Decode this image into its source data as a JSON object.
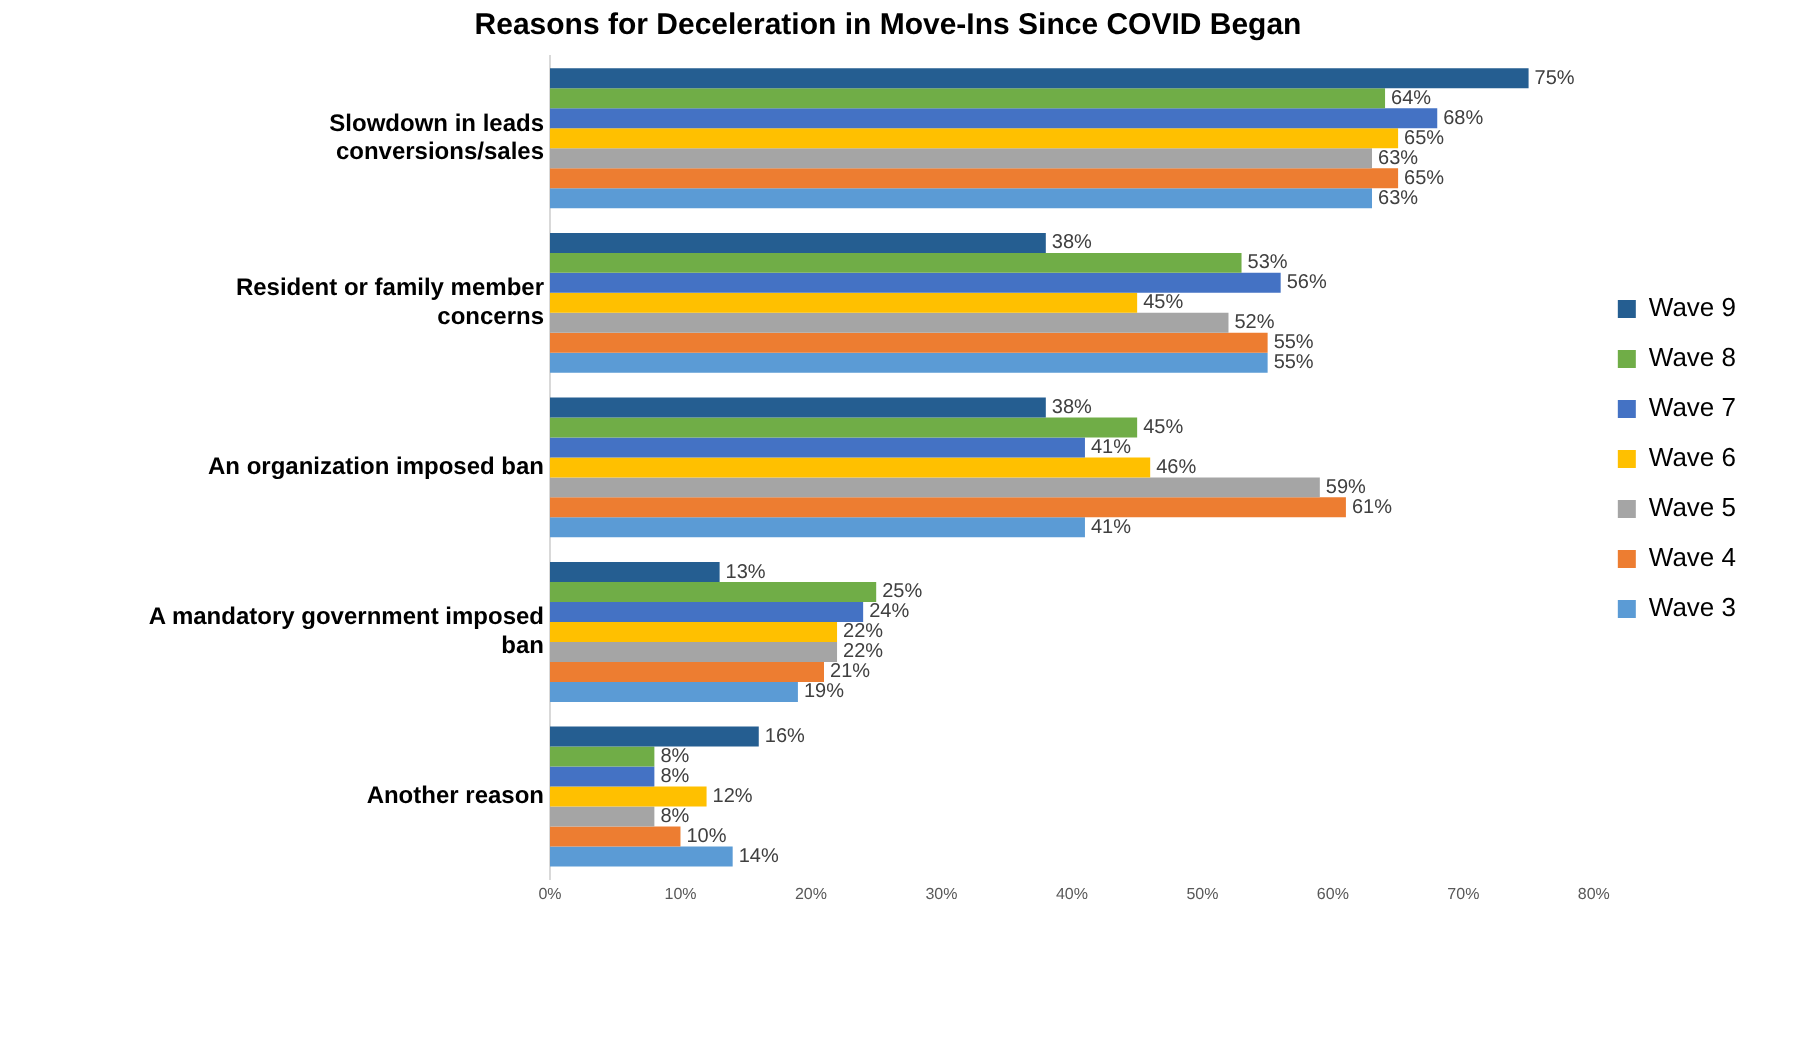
{
  "chart_data": {
    "type": "bar",
    "orientation": "horizontal",
    "title": "Reasons for Deceleration in Move-Ins Since COVID Began",
    "categories": [
      "Slowdown in leads conversions/sales",
      "Resident or family member concerns",
      "An organization imposed ban",
      "A mandatory government imposed ban",
      "Another reason"
    ],
    "series": [
      {
        "name": "Wave 9",
        "color": "#255e91",
        "values": [
          75,
          38,
          38,
          13,
          16
        ],
        "value_labels": [
          "75%",
          "38%",
          "38%",
          "13%",
          "16%"
        ]
      },
      {
        "name": "Wave 8",
        "color": "#70ad47",
        "values": [
          64,
          53,
          45,
          25,
          8
        ],
        "value_labels": [
          "64%",
          "53%",
          "45%",
          "25%",
          "8%"
        ]
      },
      {
        "name": "Wave 7",
        "color": "#4472c4",
        "values": [
          68,
          56,
          41,
          24,
          8
        ],
        "value_labels": [
          "68%",
          "56%",
          "41%",
          "24%",
          "8%"
        ]
      },
      {
        "name": "Wave 6",
        "color": "#ffc000",
        "values": [
          65,
          45,
          46,
          22,
          12
        ],
        "value_labels": [
          "65%",
          "45%",
          "46%",
          "22%",
          "12%"
        ]
      },
      {
        "name": "Wave 5",
        "color": "#a5a5a5",
        "values": [
          63,
          52,
          59,
          22,
          8
        ],
        "value_labels": [
          "63%",
          "52%",
          "59%",
          "22%",
          "8%"
        ]
      },
      {
        "name": "Wave 4",
        "color": "#ed7d31",
        "values": [
          65,
          55,
          61,
          21,
          10
        ],
        "value_labels": [
          "65%",
          "55%",
          "61%",
          "21%",
          "10%"
        ]
      },
      {
        "name": "Wave 3",
        "color": "#5b9bd5",
        "values": [
          63,
          55,
          41,
          19,
          14
        ],
        "value_labels": [
          "63%",
          "55%",
          "41%",
          "19%",
          "14%"
        ]
      }
    ],
    "xlim": [
      0,
      80
    ],
    "xticks": [
      {
        "value": 0,
        "label": "0%"
      },
      {
        "value": 10,
        "label": "10%"
      },
      {
        "value": 20,
        "label": "20%"
      },
      {
        "value": 30,
        "label": "30%"
      },
      {
        "value": 40,
        "label": "40%"
      },
      {
        "value": 50,
        "label": "50%"
      },
      {
        "value": 60,
        "label": "60%"
      },
      {
        "value": 70,
        "label": "70%"
      },
      {
        "value": 80,
        "label": "80%"
      }
    ],
    "grid": false,
    "legend": "right"
  }
}
